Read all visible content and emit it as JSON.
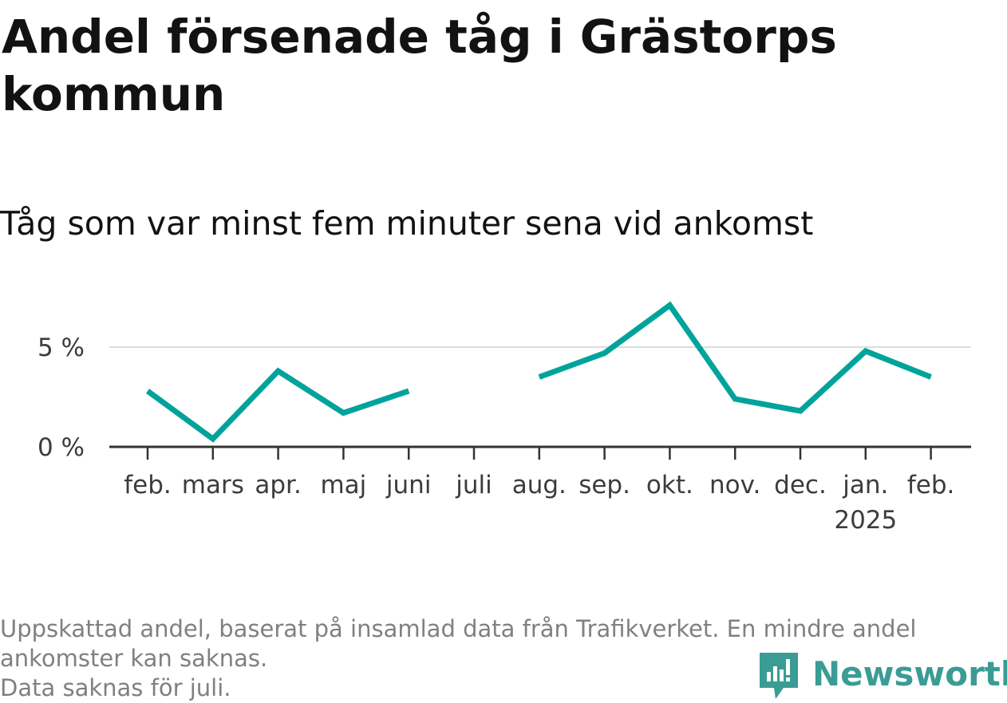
{
  "title": "Andel försenade tåg i Grästorps kommun",
  "subtitle": "Tåg som var minst fem minuter sena vid ankomst",
  "footnote": {
    "line1": "Uppskattad andel, baserat på insamlad data från Trafikverket. En mindre andel",
    "line2": "ankomster kan saknas.",
    "line3": "Data saknas för juli."
  },
  "brand": {
    "name": "Newsworthy",
    "color": "#3a9c94",
    "icon": "newsworthy-logo-icon"
  },
  "chart_data": {
    "type": "line",
    "categories": [
      "feb.",
      "mars",
      "apr.",
      "maj",
      "juni",
      "juli",
      "aug.",
      "sep.",
      "okt.",
      "nov.",
      "dec.",
      "jan.",
      "feb."
    ],
    "year_labels": [
      {
        "index": 11,
        "label": "2025"
      }
    ],
    "series": [
      {
        "values": [
          2.8,
          0.4,
          3.8,
          1.7,
          2.8,
          null,
          3.5,
          4.7,
          7.1,
          2.4,
          1.8,
          4.8,
          3.5
        ]
      }
    ],
    "yticks": [
      0,
      5
    ],
    "ytick_labels": [
      "0 %",
      "5 %"
    ],
    "ylim": [
      0,
      8
    ],
    "line_color": "#00a39b",
    "grid": true,
    "legend": "none"
  }
}
